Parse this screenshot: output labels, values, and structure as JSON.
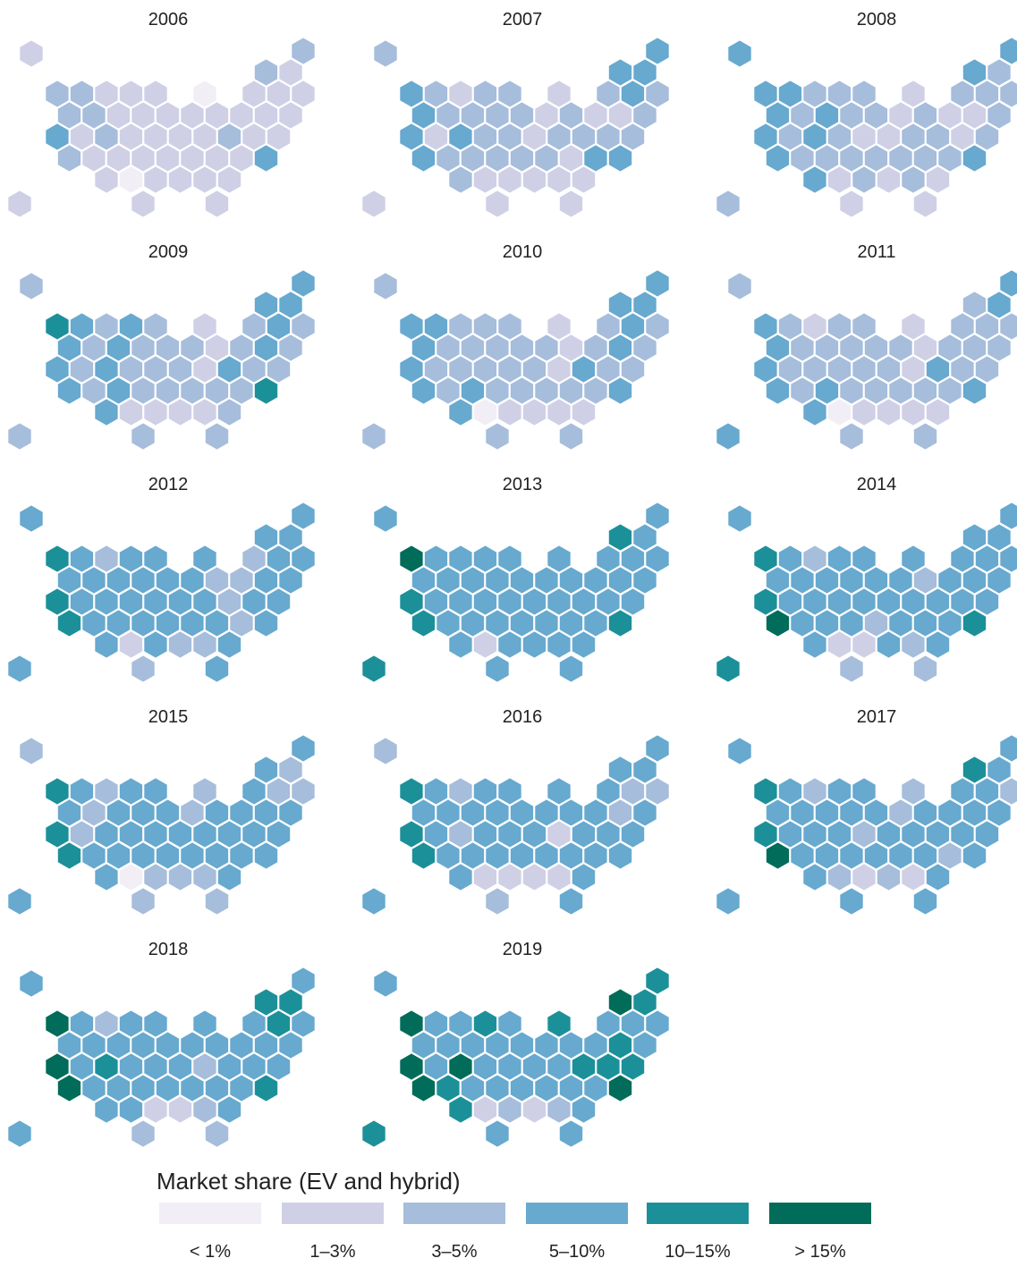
{
  "legend": {
    "title": "Market share (EV and hybrid)",
    "bins": [
      "< 1%",
      "1–3%",
      "3–5%",
      "5–10%",
      "10–15%",
      "> 15%"
    ],
    "colors": [
      "#f2eef6",
      "#cfd0e6",
      "#a6bddb",
      "#67a9cf",
      "#1c9099",
      "#016c59"
    ]
  },
  "panels": [
    {
      "year": "2006",
      "values": [
        1,
        2,
        2,
        1,
        2,
        2,
        1,
        1,
        1,
        0,
        1,
        1,
        1,
        2,
        2,
        1,
        1,
        1,
        1,
        1,
        1,
        1,
        1,
        3,
        1,
        2,
        1,
        1,
        1,
        1,
        2,
        1,
        1,
        2,
        1,
        1,
        1,
        1,
        1,
        1,
        1,
        3,
        1,
        0,
        1,
        1,
        1,
        1,
        1,
        1,
        1
      ]
    },
    {
      "year": "2007",
      "values": [
        2,
        3,
        3,
        3,
        3,
        2,
        1,
        2,
        2,
        1,
        2,
        3,
        2,
        3,
        2,
        2,
        2,
        2,
        1,
        2,
        1,
        1,
        2,
        3,
        1,
        3,
        2,
        2,
        1,
        2,
        2,
        2,
        2,
        3,
        2,
        2,
        2,
        2,
        2,
        1,
        3,
        3,
        2,
        1,
        1,
        1,
        1,
        1,
        1,
        1,
        1
      ]
    },
    {
      "year": "2008",
      "values": [
        3,
        3,
        3,
        2,
        3,
        3,
        2,
        2,
        2,
        1,
        2,
        2,
        2,
        3,
        2,
        3,
        2,
        2,
        1,
        2,
        1,
        1,
        2,
        3,
        2,
        3,
        2,
        1,
        1,
        2,
        2,
        1,
        2,
        3,
        2,
        2,
        2,
        2,
        2,
        2,
        2,
        3,
        3,
        1,
        2,
        1,
        2,
        1,
        2,
        1,
        1
      ]
    },
    {
      "year": "2009",
      "values": [
        2,
        3,
        3,
        3,
        4,
        3,
        2,
        3,
        2,
        1,
        2,
        3,
        2,
        3,
        2,
        3,
        2,
        2,
        2,
        1,
        2,
        3,
        2,
        3,
        2,
        3,
        2,
        2,
        2,
        1,
        3,
        2,
        2,
        3,
        2,
        3,
        2,
        2,
        2,
        2,
        2,
        4,
        3,
        1,
        1,
        1,
        1,
        2,
        2,
        2,
        2
      ]
    },
    {
      "year": "2010",
      "values": [
        2,
        3,
        3,
        3,
        3,
        3,
        2,
        2,
        2,
        1,
        2,
        3,
        2,
        3,
        2,
        2,
        2,
        2,
        2,
        1,
        2,
        3,
        2,
        3,
        2,
        2,
        2,
        2,
        2,
        1,
        3,
        2,
        2,
        3,
        2,
        3,
        2,
        2,
        2,
        2,
        2,
        3,
        3,
        0,
        1,
        1,
        1,
        1,
        2,
        2,
        2
      ]
    },
    {
      "year": "2011",
      "values": [
        2,
        3,
        2,
        3,
        3,
        2,
        1,
        2,
        2,
        1,
        2,
        2,
        2,
        3,
        2,
        2,
        2,
        2,
        2,
        1,
        2,
        2,
        2,
        3,
        2,
        2,
        2,
        2,
        2,
        1,
        3,
        2,
        2,
        3,
        2,
        3,
        2,
        2,
        2,
        2,
        2,
        3,
        3,
        0,
        1,
        1,
        1,
        1,
        3,
        2,
        2
      ]
    },
    {
      "year": "2012",
      "values": [
        3,
        3,
        3,
        3,
        4,
        3,
        2,
        3,
        3,
        3,
        2,
        3,
        3,
        3,
        3,
        3,
        3,
        3,
        3,
        2,
        2,
        3,
        3,
        4,
        3,
        3,
        3,
        3,
        3,
        3,
        2,
        3,
        3,
        4,
        3,
        3,
        3,
        3,
        3,
        3,
        2,
        3,
        3,
        1,
        3,
        2,
        2,
        3,
        3,
        2,
        3
      ]
    },
    {
      "year": "2013",
      "values": [
        3,
        3,
        4,
        3,
        5,
        3,
        3,
        3,
        3,
        3,
        3,
        3,
        3,
        3,
        3,
        3,
        3,
        3,
        3,
        3,
        3,
        3,
        3,
        4,
        3,
        3,
        3,
        3,
        3,
        3,
        3,
        3,
        3,
        4,
        3,
        3,
        3,
        3,
        3,
        3,
        3,
        4,
        3,
        1,
        3,
        3,
        3,
        3,
        4,
        3,
        3
      ]
    },
    {
      "year": "2014",
      "values": [
        3,
        3,
        3,
        3,
        4,
        3,
        2,
        3,
        3,
        3,
        3,
        3,
        3,
        3,
        3,
        3,
        3,
        3,
        3,
        2,
        3,
        3,
        3,
        4,
        3,
        3,
        3,
        3,
        3,
        3,
        3,
        3,
        3,
        5,
        3,
        3,
        3,
        2,
        3,
        3,
        3,
        4,
        3,
        1,
        1,
        3,
        2,
        3,
        4,
        2,
        2
      ]
    },
    {
      "year": "2015",
      "values": [
        2,
        3,
        3,
        2,
        4,
        3,
        2,
        3,
        3,
        2,
        3,
        2,
        2,
        3,
        2,
        3,
        3,
        3,
        2,
        3,
        3,
        3,
        3,
        4,
        2,
        3,
        3,
        3,
        3,
        3,
        3,
        3,
        3,
        4,
        3,
        3,
        3,
        3,
        3,
        3,
        3,
        3,
        3,
        0,
        2,
        2,
        2,
        3,
        3,
        2,
        2
      ]
    },
    {
      "year": "2016",
      "values": [
        2,
        3,
        3,
        3,
        4,
        3,
        2,
        3,
        3,
        3,
        3,
        2,
        2,
        3,
        3,
        3,
        3,
        3,
        3,
        3,
        3,
        2,
        3,
        4,
        3,
        2,
        3,
        3,
        3,
        1,
        3,
        3,
        3,
        4,
        3,
        3,
        3,
        3,
        3,
        3,
        3,
        3,
        3,
        1,
        1,
        1,
        1,
        3,
        3,
        2,
        3
      ]
    },
    {
      "year": "2017",
      "values": [
        3,
        3,
        4,
        3,
        4,
        3,
        2,
        3,
        3,
        2,
        3,
        3,
        2,
        3,
        3,
        3,
        3,
        3,
        2,
        3,
        3,
        3,
        3,
        4,
        3,
        3,
        3,
        2,
        3,
        3,
        3,
        3,
        3,
        5,
        3,
        3,
        3,
        3,
        3,
        3,
        2,
        3,
        3,
        2,
        1,
        2,
        1,
        3,
        3,
        3,
        3
      ]
    },
    {
      "year": "2018",
      "values": [
        3,
        3,
        4,
        4,
        5,
        3,
        2,
        3,
        3,
        3,
        3,
        4,
        3,
        3,
        3,
        3,
        3,
        3,
        3,
        3,
        3,
        3,
        3,
        5,
        3,
        4,
        3,
        3,
        3,
        2,
        3,
        3,
        3,
        5,
        3,
        3,
        3,
        3,
        3,
        3,
        3,
        4,
        3,
        3,
        1,
        1,
        2,
        3,
        3,
        2,
        2
      ]
    },
    {
      "year": "2019",
      "values": [
        3,
        4,
        5,
        4,
        5,
        3,
        3,
        4,
        3,
        4,
        3,
        3,
        3,
        3,
        3,
        3,
        3,
        3,
        3,
        3,
        3,
        4,
        3,
        5,
        3,
        5,
        3,
        3,
        3,
        3,
        4,
        4,
        4,
        5,
        4,
        3,
        3,
        3,
        3,
        3,
        3,
        5,
        4,
        1,
        2,
        1,
        2,
        3,
        4,
        3,
        3
      ]
    }
  ]
}
